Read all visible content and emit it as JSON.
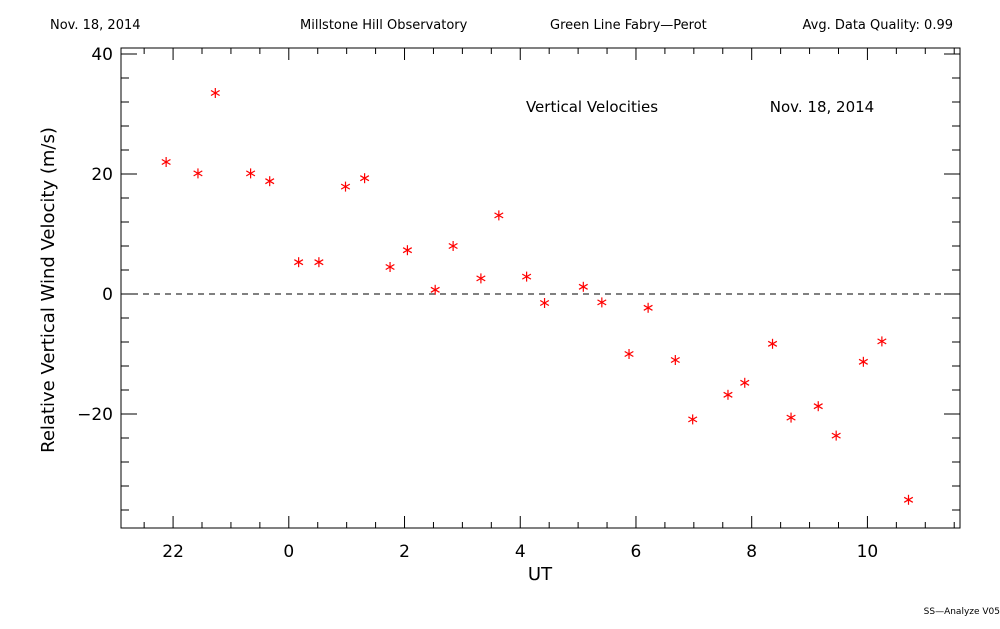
{
  "header": {
    "date": "Nov. 18, 2014",
    "observatory": "Millstone Hill Observatory",
    "instrument": "Green Line Fabry—Perot",
    "quality": "Avg. Data Quality: 0.99"
  },
  "footer": {
    "software": "SS—Analyze V05"
  },
  "chart_data": {
    "type": "scatter",
    "title": "Vertical Velocities",
    "date_annotation": "Nov. 18, 2014",
    "xlabel": "UT",
    "ylabel": "Relative Vertical Wind Velocity (m/s)",
    "xlim": [
      21.1,
      35.6
    ],
    "ylim": [
      -39,
      41
    ],
    "x_ticks": [
      22,
      24,
      26,
      28,
      30,
      32,
      34
    ],
    "x_tick_labels": [
      "22",
      "0",
      "2",
      "4",
      "6",
      "8",
      "10"
    ],
    "y_ticks": [
      -20,
      0,
      20,
      40
    ],
    "y_tick_labels": [
      "−20",
      "0",
      "20",
      "40"
    ],
    "zero_line": true,
    "marker": "asterisk",
    "marker_color": "#ff0000",
    "points": [
      {
        "x": 21.88,
        "y": 22.0
      },
      {
        "x": 22.43,
        "y": 20.1
      },
      {
        "x": 22.73,
        "y": 33.5
      },
      {
        "x": 23.34,
        "y": 20.1
      },
      {
        "x": 23.67,
        "y": 18.8
      },
      {
        "x": 24.17,
        "y": 5.3
      },
      {
        "x": 24.52,
        "y": 5.3
      },
      {
        "x": 24.98,
        "y": 17.9
      },
      {
        "x": 25.31,
        "y": 19.3
      },
      {
        "x": 25.75,
        "y": 4.5
      },
      {
        "x": 26.05,
        "y": 7.3
      },
      {
        "x": 26.53,
        "y": 0.7
      },
      {
        "x": 26.84,
        "y": 8.0
      },
      {
        "x": 27.32,
        "y": 2.6
      },
      {
        "x": 27.63,
        "y": 13.1
      },
      {
        "x": 28.11,
        "y": 2.9
      },
      {
        "x": 28.42,
        "y": -1.5
      },
      {
        "x": 29.09,
        "y": 1.2
      },
      {
        "x": 29.41,
        "y": -1.4
      },
      {
        "x": 29.88,
        "y": -10.0
      },
      {
        "x": 30.21,
        "y": -2.3
      },
      {
        "x": 30.68,
        "y": -11.0
      },
      {
        "x": 30.98,
        "y": -20.9
      },
      {
        "x": 31.59,
        "y": -16.8
      },
      {
        "x": 31.88,
        "y": -14.8
      },
      {
        "x": 32.36,
        "y": -8.3
      },
      {
        "x": 32.68,
        "y": -20.6
      },
      {
        "x": 33.15,
        "y": -18.7
      },
      {
        "x": 33.46,
        "y": -23.6
      },
      {
        "x": 33.93,
        "y": -11.3
      },
      {
        "x": 34.25,
        "y": -7.9
      },
      {
        "x": 34.71,
        "y": -34.3
      }
    ]
  }
}
